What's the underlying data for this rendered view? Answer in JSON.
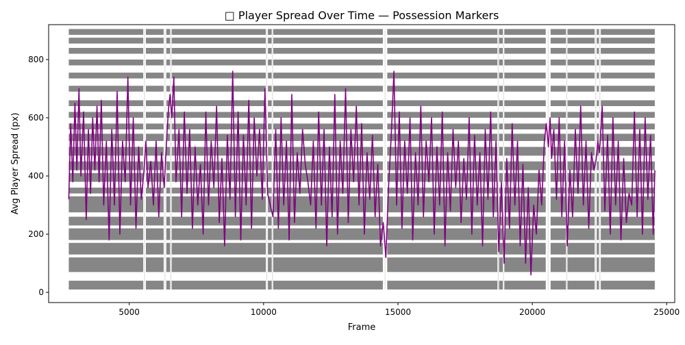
{
  "chart_data": {
    "type": "line",
    "title": "□ Player Spread Over Time — Possession Markers",
    "xlabel": "Frame",
    "ylabel": "Avg Player Spread (px)",
    "xlim": [
      2000,
      25300
    ],
    "ylim": [
      -35,
      920
    ],
    "xticks": [
      5000,
      10000,
      15000,
      20000,
      25000
    ],
    "yticks": [
      0,
      200,
      400,
      600,
      800
    ],
    "grid": false,
    "series": [
      {
        "color": "#800080",
        "points": [
          [
            2750,
            320
          ],
          [
            2820,
            580
          ],
          [
            2900,
            380
          ],
          [
            2980,
            650
          ],
          [
            3050,
            420
          ],
          [
            3130,
            700
          ],
          [
            3200,
            400
          ],
          [
            3300,
            620
          ],
          [
            3400,
            250
          ],
          [
            3480,
            560
          ],
          [
            3560,
            340
          ],
          [
            3640,
            600
          ],
          [
            3720,
            420
          ],
          [
            3800,
            640
          ],
          [
            3880,
            380
          ],
          [
            3960,
            660
          ],
          [
            4050,
            300
          ],
          [
            4150,
            520
          ],
          [
            4250,
            180
          ],
          [
            4350,
            560
          ],
          [
            4450,
            300
          ],
          [
            4550,
            690
          ],
          [
            4650,
            200
          ],
          [
            4750,
            520
          ],
          [
            4850,
            380
          ],
          [
            4950,
            740
          ],
          [
            5050,
            300
          ],
          [
            5150,
            600
          ],
          [
            5250,
            220
          ],
          [
            5350,
            500
          ],
          [
            5450,
            320
          ],
          [
            5550,
            420
          ],
          [
            5620,
            520
          ],
          [
            5700,
            360
          ],
          [
            5800,
            450
          ],
          [
            5900,
            300
          ],
          [
            6000,
            520
          ],
          [
            6100,
            260
          ],
          [
            6200,
            480
          ],
          [
            6300,
            360
          ],
          [
            6400,
            540
          ],
          [
            6460,
            630
          ],
          [
            6520,
            680
          ],
          [
            6580,
            600
          ],
          [
            6660,
            740
          ],
          [
            6740,
            380
          ],
          [
            6850,
            560
          ],
          [
            6950,
            260
          ],
          [
            7050,
            620
          ],
          [
            7150,
            340
          ],
          [
            7250,
            560
          ],
          [
            7350,
            220
          ],
          [
            7450,
            500
          ],
          [
            7550,
            300
          ],
          [
            7650,
            440
          ],
          [
            7750,
            200
          ],
          [
            7850,
            620
          ],
          [
            7950,
            300
          ],
          [
            8050,
            520
          ],
          [
            8150,
            360
          ],
          [
            8250,
            640
          ],
          [
            8350,
            240
          ],
          [
            8450,
            460
          ],
          [
            8550,
            160
          ],
          [
            8650,
            540
          ],
          [
            8750,
            320
          ],
          [
            8850,
            760
          ],
          [
            8950,
            260
          ],
          [
            9050,
            620
          ],
          [
            9150,
            180
          ],
          [
            9250,
            540
          ],
          [
            9350,
            300
          ],
          [
            9450,
            660
          ],
          [
            9550,
            220
          ],
          [
            9650,
            600
          ],
          [
            9750,
            400
          ],
          [
            9850,
            560
          ],
          [
            9950,
            320
          ],
          [
            10050,
            700
          ],
          [
            10150,
            340
          ],
          [
            10250,
            300
          ],
          [
            10350,
            260
          ],
          [
            10450,
            560
          ],
          [
            10550,
            220
          ],
          [
            10650,
            600
          ],
          [
            10750,
            300
          ],
          [
            10850,
            520
          ],
          [
            10950,
            180
          ],
          [
            11050,
            680
          ],
          [
            11150,
            240
          ],
          [
            11250,
            480
          ],
          [
            11350,
            340
          ],
          [
            11450,
            560
          ],
          [
            11550,
            440
          ],
          [
            11650,
            380
          ],
          [
            11750,
            300
          ],
          [
            11850,
            520
          ],
          [
            11950,
            220
          ],
          [
            12050,
            620
          ],
          [
            12150,
            300
          ],
          [
            12250,
            560
          ],
          [
            12350,
            160
          ],
          [
            12450,
            500
          ],
          [
            12550,
            260
          ],
          [
            12650,
            680
          ],
          [
            12750,
            200
          ],
          [
            12850,
            520
          ],
          [
            12950,
            340
          ],
          [
            13050,
            700
          ],
          [
            13150,
            240
          ],
          [
            13250,
            560
          ],
          [
            13350,
            380
          ],
          [
            13450,
            640
          ],
          [
            13550,
            300
          ],
          [
            13650,
            580
          ],
          [
            13750,
            200
          ],
          [
            13850,
            480
          ],
          [
            13950,
            320
          ],
          [
            14050,
            540
          ],
          [
            14150,
            260
          ],
          [
            14250,
            440
          ],
          [
            14350,
            160
          ],
          [
            14450,
            240
          ],
          [
            14550,
            120
          ],
          [
            14650,
            360
          ],
          [
            14750,
            540
          ],
          [
            14850,
            760
          ],
          [
            14950,
            300
          ],
          [
            15050,
            620
          ],
          [
            15150,
            220
          ],
          [
            15250,
            520
          ],
          [
            15350,
            340
          ],
          [
            15450,
            600
          ],
          [
            15550,
            180
          ],
          [
            15650,
            480
          ],
          [
            15750,
            300
          ],
          [
            15850,
            640
          ],
          [
            15950,
            260
          ],
          [
            16050,
            520
          ],
          [
            16150,
            380
          ],
          [
            16250,
            600
          ],
          [
            16350,
            200
          ],
          [
            16450,
            500
          ],
          [
            16550,
            300
          ],
          [
            16650,
            620
          ],
          [
            16750,
            160
          ],
          [
            16850,
            480
          ],
          [
            16950,
            280
          ],
          [
            17050,
            560
          ],
          [
            17150,
            360
          ],
          [
            17250,
            520
          ],
          [
            17350,
            240
          ],
          [
            17450,
            460
          ],
          [
            17550,
            320
          ],
          [
            17650,
            600
          ],
          [
            17750,
            200
          ],
          [
            17850,
            540
          ],
          [
            17950,
            300
          ],
          [
            18050,
            480
          ],
          [
            18150,
            160
          ],
          [
            18250,
            560
          ],
          [
            18350,
            320
          ],
          [
            18450,
            620
          ],
          [
            18550,
            260
          ],
          [
            18650,
            520
          ],
          [
            18750,
            140
          ],
          [
            18850,
            380
          ],
          [
            18950,
            100
          ],
          [
            19050,
            460
          ],
          [
            19150,
            220
          ],
          [
            19250,
            580
          ],
          [
            19350,
            300
          ],
          [
            19450,
            520
          ],
          [
            19550,
            160
          ],
          [
            19650,
            440
          ],
          [
            19750,
            100
          ],
          [
            19850,
            360
          ],
          [
            19950,
            60
          ],
          [
            20050,
            300
          ],
          [
            20150,
            200
          ],
          [
            20250,
            420
          ],
          [
            20350,
            300
          ],
          [
            20450,
            520
          ],
          [
            20520,
            580
          ],
          [
            20600,
            500
          ],
          [
            20660,
            600
          ],
          [
            20720,
            460
          ],
          [
            20800,
            560
          ],
          [
            20900,
            320
          ],
          [
            21000,
            600
          ],
          [
            21100,
            260
          ],
          [
            21200,
            520
          ],
          [
            21300,
            160
          ],
          [
            21400,
            420
          ],
          [
            21500,
            260
          ],
          [
            21600,
            560
          ],
          [
            21700,
            340
          ],
          [
            21800,
            640
          ],
          [
            21900,
            300
          ],
          [
            22000,
            520
          ],
          [
            22100,
            220
          ],
          [
            22200,
            480
          ],
          [
            22300,
            420
          ],
          [
            22380,
            460
          ],
          [
            22440,
            520
          ],
          [
            22500,
            480
          ],
          [
            22600,
            640
          ],
          [
            22700,
            280
          ],
          [
            22800,
            540
          ],
          [
            22900,
            200
          ],
          [
            23000,
            600
          ],
          [
            23100,
            300
          ],
          [
            23200,
            520
          ],
          [
            23300,
            180
          ],
          [
            23400,
            460
          ],
          [
            23500,
            240
          ],
          [
            23600,
            340
          ],
          [
            23700,
            300
          ],
          [
            23800,
            620
          ],
          [
            23900,
            260
          ],
          [
            24000,
            560
          ],
          [
            24100,
            200
          ],
          [
            24200,
            600
          ],
          [
            24300,
            320
          ],
          [
            24400,
            540
          ],
          [
            24500,
            200
          ],
          [
            24560,
            420
          ]
        ]
      }
    ],
    "possession_markers": {
      "color": "#808080",
      "frame_start": 2750,
      "frame_end": 24560,
      "gaps": [
        [
          5520,
          5620
        ],
        [
          6280,
          6380
        ],
        [
          6520,
          6580
        ],
        [
          10080,
          10160
        ],
        [
          10300,
          10360
        ],
        [
          14440,
          14600
        ],
        [
          18700,
          18760
        ],
        [
          18900,
          18960
        ],
        [
          20500,
          20680
        ],
        [
          21250,
          21310
        ],
        [
          22320,
          22400
        ],
        [
          22480,
          22550
        ]
      ],
      "levels": [
        [
          10,
          40
        ],
        [
          70,
          120
        ],
        [
          130,
          170
        ],
        [
          180,
          220
        ],
        [
          230,
          260
        ],
        [
          275,
          330
        ],
        [
          340,
          360
        ],
        [
          380,
          410
        ],
        [
          420,
          450
        ],
        [
          470,
          500
        ],
        [
          520,
          545
        ],
        [
          560,
          580
        ],
        [
          600,
          620
        ],
        [
          640,
          660
        ],
        [
          690,
          710
        ],
        [
          735,
          755
        ],
        [
          780,
          800
        ],
        [
          820,
          840
        ],
        [
          855,
          875
        ],
        [
          885,
          905
        ]
      ]
    }
  }
}
